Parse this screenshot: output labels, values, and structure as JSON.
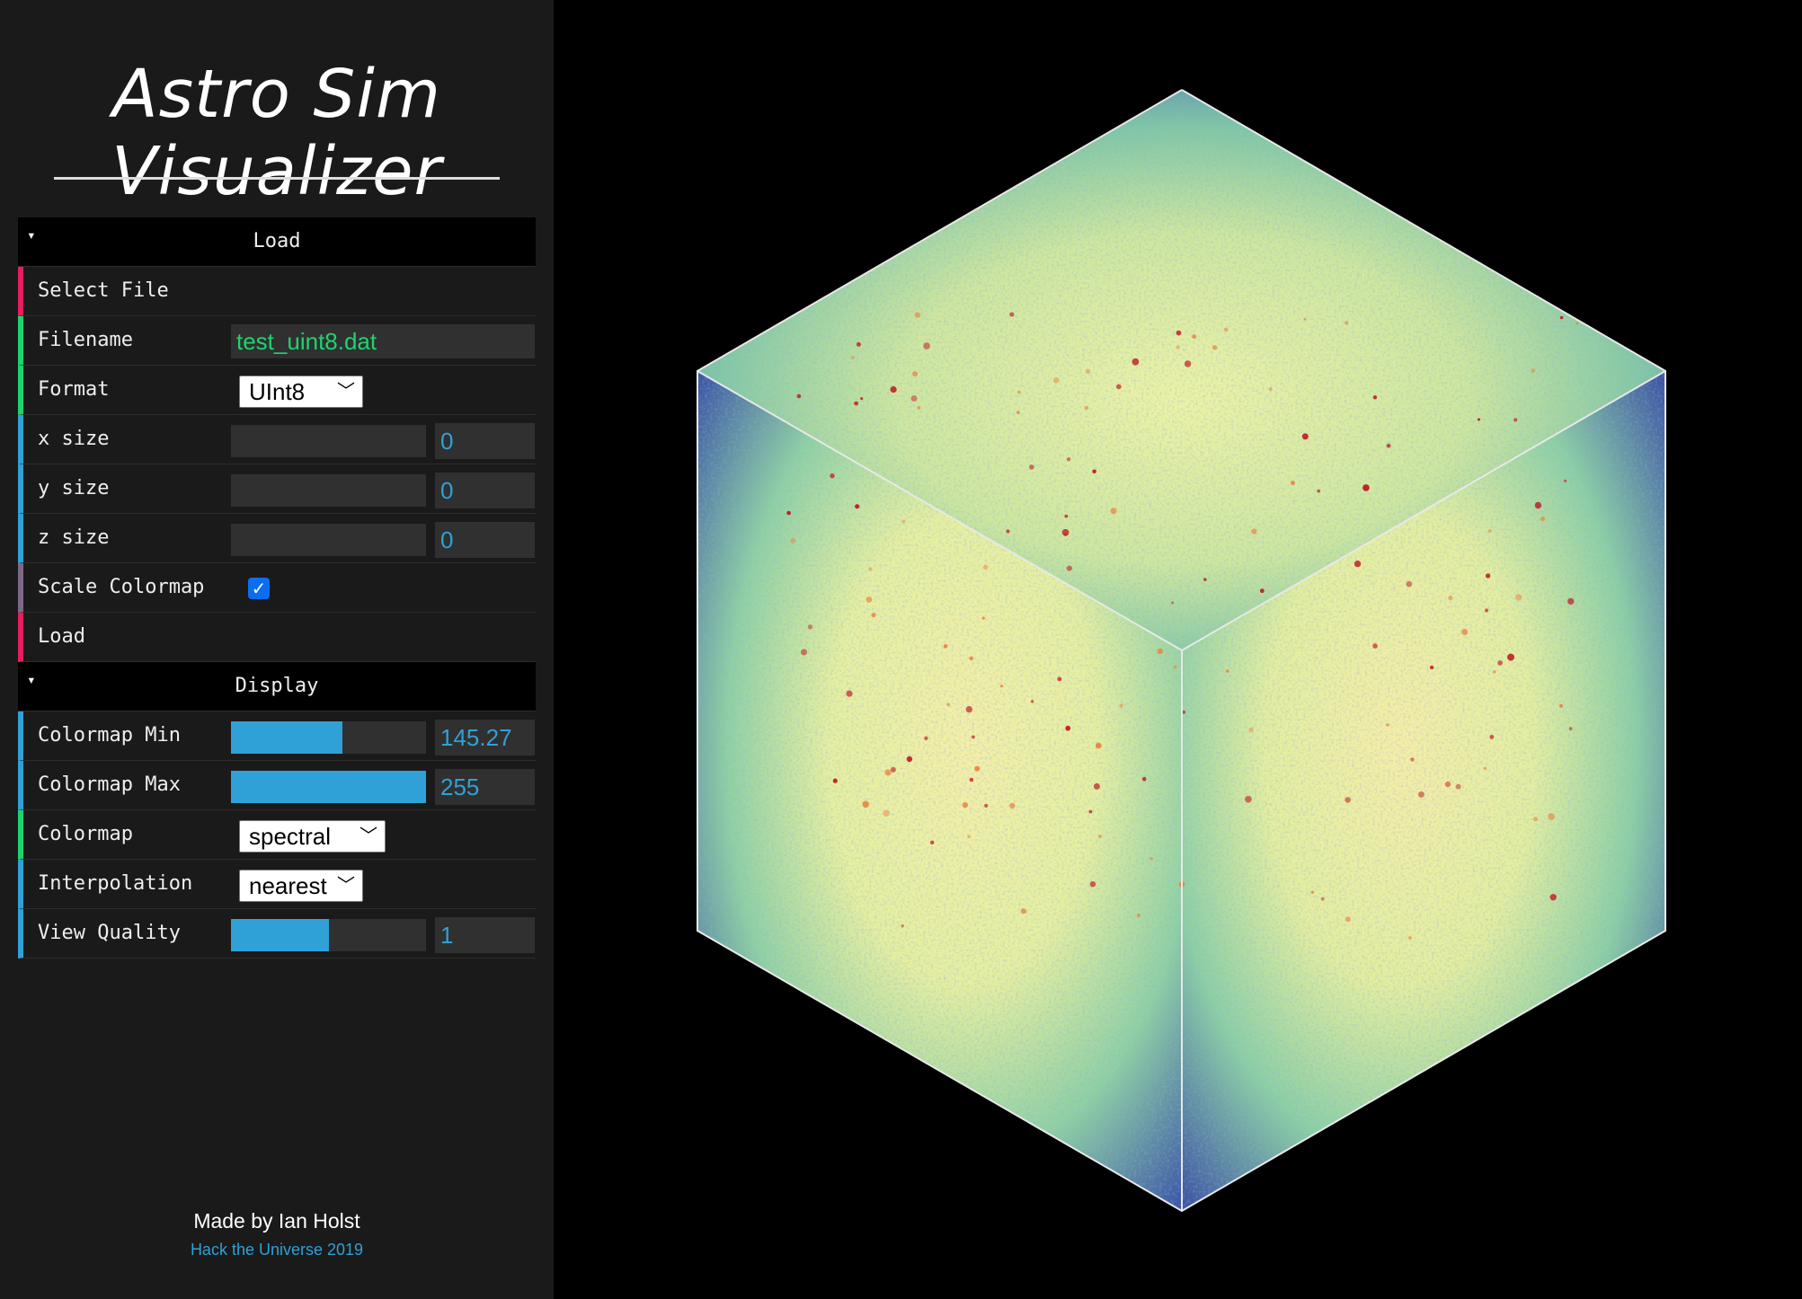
{
  "app": {
    "title": "Astro Sim Visualizer"
  },
  "load_folder": {
    "title": "Load",
    "select_file_label": "Select File",
    "filename_label": "Filename",
    "filename_value": "test_uint8.dat",
    "format_label": "Format",
    "format_value": "UInt8",
    "x_size_label": "x size",
    "x_size_value": "0",
    "y_size_label": "y size",
    "y_size_value": "0",
    "z_size_label": "z size",
    "z_size_value": "0",
    "scale_colormap_label": "Scale Colormap",
    "scale_colormap_checked": true,
    "load_label": "Load"
  },
  "display_folder": {
    "title": "Display",
    "colormap_min_label": "Colormap Min",
    "colormap_min_value": "145.27",
    "colormap_min_fraction": 0.57,
    "colormap_max_label": "Colormap Max",
    "colormap_max_value": "255",
    "colormap_max_fraction": 1.0,
    "colormap_label": "Colormap",
    "colormap_value": "spectral",
    "interpolation_label": "Interpolation",
    "interpolation_value": "nearest",
    "view_quality_label": "View Quality",
    "view_quality_value": "1",
    "view_quality_fraction": 0.5
  },
  "footer": {
    "author": "Made by Ian Holst",
    "event": "Hack the Universe 2019"
  },
  "colors": {
    "accent_blue": "#2fa1d6",
    "accent_green": "#1ed36f",
    "accent_pink": "#e61d5f",
    "spectral_low": "#3f4fa0",
    "spectral_mid": "#f2f3a6",
    "spectral_high": "#c0202a"
  }
}
